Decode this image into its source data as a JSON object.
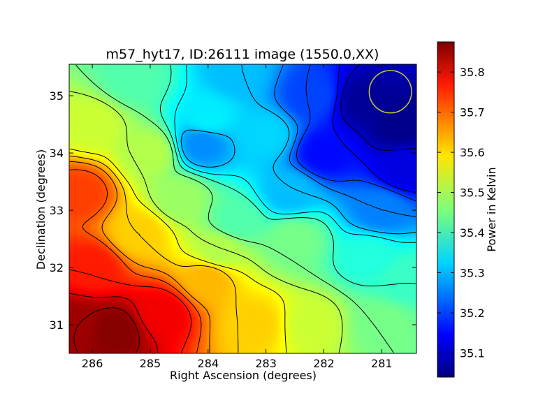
{
  "chart_data": {
    "type": "heatmap",
    "title": "m57_hyt17, ID:26111 image (1550.0,XX)",
    "xlabel": "Right Ascension (degrees)",
    "ylabel": "Declination (degrees)",
    "xlim": [
      286.4,
      280.4
    ],
    "ylim": [
      30.5,
      35.55
    ],
    "x_ticks": [
      286,
      285,
      284,
      283,
      282,
      281
    ],
    "y_ticks": [
      31,
      32,
      33,
      34,
      35
    ],
    "x_tick_labels": [
      "286",
      "285",
      "284",
      "283",
      "282",
      "281"
    ],
    "y_tick_labels": [
      "31",
      "32",
      "33",
      "34",
      "35"
    ],
    "colormap": "jet",
    "colorbar": {
      "label": "Power in Kelvin",
      "range": [
        35.04,
        35.875
      ],
      "ticks": [
        35.1,
        35.2,
        35.3,
        35.4,
        35.5,
        35.6,
        35.7,
        35.8
      ],
      "tick_labels": [
        "35.1",
        "35.2",
        "35.3",
        "35.4",
        "35.5",
        "35.6",
        "35.7",
        "35.8"
      ]
    },
    "contour_interval": 0.05,
    "grid": false,
    "beam_marker": {
      "ra": 280.85,
      "dec": 35.07,
      "radius_deg": 0.37,
      "color": "#c8c832"
    },
    "field_samples": [
      {
        "ra": 285.6,
        "dec": 30.9,
        "value": 35.87
      },
      {
        "ra": 284.8,
        "dec": 31.2,
        "value": 35.78
      },
      {
        "ra": 286.0,
        "dec": 32.0,
        "value": 35.75
      },
      {
        "ra": 286.2,
        "dec": 33.3,
        "value": 35.72
      },
      {
        "ra": 285.2,
        "dec": 32.6,
        "value": 35.6
      },
      {
        "ra": 284.0,
        "dec": 31.8,
        "value": 35.62
      },
      {
        "ra": 283.2,
        "dec": 31.0,
        "value": 35.6
      },
      {
        "ra": 282.2,
        "dec": 31.0,
        "value": 35.52
      },
      {
        "ra": 281.0,
        "dec": 31.0,
        "value": 35.45
      },
      {
        "ra": 286.0,
        "dec": 34.5,
        "value": 35.52
      },
      {
        "ra": 285.0,
        "dec": 34.0,
        "value": 35.5
      },
      {
        "ra": 284.5,
        "dec": 33.2,
        "value": 35.48
      },
      {
        "ra": 283.5,
        "dec": 32.8,
        "value": 35.42
      },
      {
        "ra": 282.5,
        "dec": 32.5,
        "value": 35.45
      },
      {
        "ra": 281.2,
        "dec": 32.2,
        "value": 35.38
      },
      {
        "ra": 285.3,
        "dec": 35.3,
        "value": 35.42
      },
      {
        "ra": 284.0,
        "dec": 34.6,
        "value": 35.34
      },
      {
        "ra": 284.1,
        "dec": 34.15,
        "value": 35.26
      },
      {
        "ra": 283.0,
        "dec": 34.3,
        "value": 35.32
      },
      {
        "ra": 282.6,
        "dec": 33.3,
        "value": 35.3
      },
      {
        "ra": 281.0,
        "dec": 33.0,
        "value": 35.25
      },
      {
        "ra": 282.0,
        "dec": 34.0,
        "value": 35.15
      },
      {
        "ra": 282.2,
        "dec": 35.0,
        "value": 35.2
      },
      {
        "ra": 281.3,
        "dec": 34.9,
        "value": 35.06
      },
      {
        "ra": 280.7,
        "dec": 34.5,
        "value": 35.05
      },
      {
        "ra": 280.6,
        "dec": 33.7,
        "value": 35.12
      },
      {
        "ra": 283.5,
        "dec": 35.4,
        "value": 35.3
      },
      {
        "ra": 286.3,
        "dec": 31.0,
        "value": 35.85
      },
      {
        "ra": 280.6,
        "dec": 31.8,
        "value": 35.4
      },
      {
        "ra": 283.8,
        "dec": 32.3,
        "value": 35.5
      }
    ]
  }
}
